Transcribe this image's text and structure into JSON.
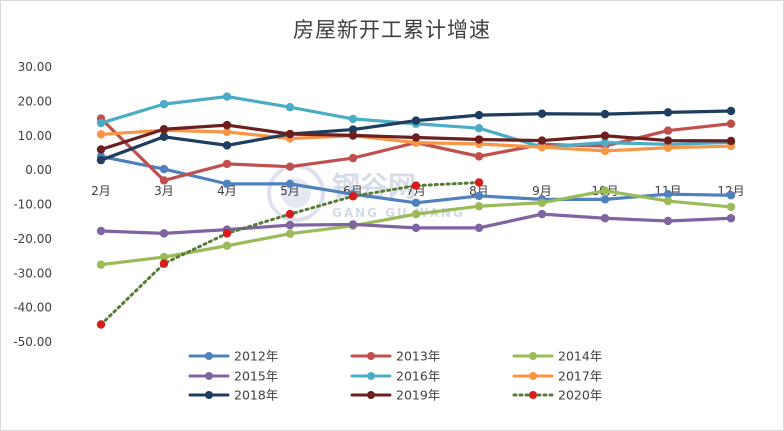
{
  "chart_data": {
    "type": "line",
    "title": "房屋新开工累计增速",
    "xlabel": "",
    "ylabel": "",
    "categories": [
      "2月",
      "3月",
      "4月",
      "5月",
      "6月",
      "7月",
      "8月",
      "9月",
      "10月",
      "11月",
      "12月"
    ],
    "yticks": [
      "30.00",
      "20.00",
      "10.00",
      "0.00",
      "-10.00",
      "-20.00",
      "-30.00",
      "-40.00",
      "-50.00"
    ],
    "ylim": [
      -50,
      30
    ],
    "grid": false,
    "legend_position": "bottom",
    "series": [
      {
        "name": "2012年",
        "color": "#4f81bd",
        "style": "solid",
        "values": [
          4.0,
          0.3,
          -4.0,
          -4.0,
          -7.0,
          -9.5,
          -7.5,
          -8.5,
          -8.5,
          -7.0,
          -7.3
        ]
      },
      {
        "name": "2013年",
        "color": "#c0504d",
        "style": "solid",
        "values": [
          15.0,
          -3.0,
          1.8,
          1.0,
          3.5,
          8.0,
          4.0,
          7.5,
          7.0,
          11.5,
          13.5
        ]
      },
      {
        "name": "2014年",
        "color": "#9bbb59",
        "style": "solid",
        "values": [
          -27.5,
          -25.3,
          -22.0,
          -18.5,
          -16.2,
          -12.8,
          -10.5,
          -9.5,
          -6.0,
          -9.0,
          -10.7
        ]
      },
      {
        "name": "2015年",
        "color": "#8064a2",
        "style": "solid",
        "values": [
          -17.7,
          -18.4,
          -17.3,
          -16.0,
          -15.8,
          -16.8,
          -16.8,
          -12.8,
          -14.0,
          -14.8,
          -14.0
        ]
      },
      {
        "name": "2016年",
        "color": "#4bacc6",
        "style": "solid",
        "values": [
          13.7,
          19.2,
          21.4,
          18.3,
          14.9,
          13.5,
          12.2,
          6.7,
          8.0,
          7.5,
          8.1
        ]
      },
      {
        "name": "2017年",
        "color": "#f79646",
        "style": "solid",
        "values": [
          10.4,
          11.6,
          11.1,
          9.2,
          10.0,
          8.0,
          7.6,
          6.7,
          5.6,
          6.5,
          7.0
        ]
      },
      {
        "name": "2018年",
        "color": "#1f3d5f",
        "style": "solid",
        "values": [
          2.9,
          9.7,
          7.2,
          10.5,
          11.8,
          14.4,
          16.0,
          16.4,
          16.3,
          16.8,
          17.2
        ]
      },
      {
        "name": "2019年",
        "color": "#6b1f1f",
        "style": "solid",
        "values": [
          6.0,
          11.9,
          13.1,
          10.5,
          10.1,
          9.5,
          8.9,
          8.6,
          10.0,
          8.6,
          8.5
        ]
      },
      {
        "name": "2020年",
        "color": "#5a7a3a",
        "marker_color": "#d61c1c",
        "style": "dotted",
        "values": [
          -44.9,
          -27.2,
          -18.4,
          -12.8,
          -7.6,
          -4.5,
          -3.6,
          null,
          null,
          null,
          null
        ]
      }
    ]
  },
  "watermark": {
    "main": "钢谷网",
    "sub": "GANG GU WANG"
  }
}
